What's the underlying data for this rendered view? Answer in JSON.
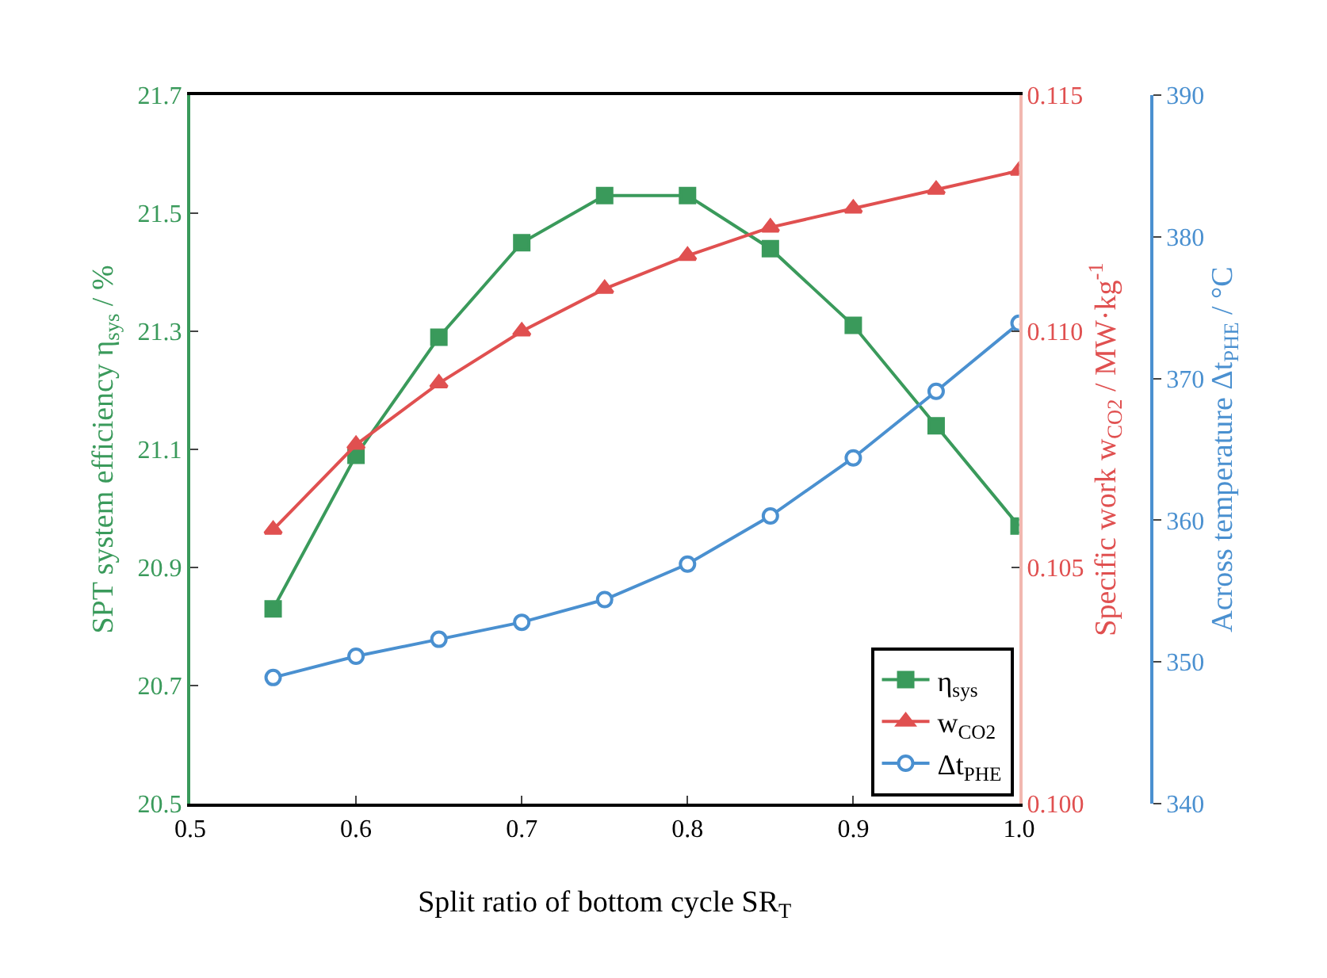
{
  "chart_data": {
    "type": "line",
    "xlabel": "Split ratio of bottom cycle SR$_{T}$",
    "ylabel": "SPT system efficiency η$_{sys}$ / %",
    "y2label": "Specific work w$_{CO2}$ / MW·kg$^{-1}$",
    "y3label": "Across temperature Δt$_{PHE}$ / °C",
    "x": [
      0.55,
      0.6,
      0.65,
      0.7,
      0.75,
      0.8,
      0.85,
      0.9,
      0.95,
      1.0
    ],
    "series": [
      {
        "name": "η$_{sys}$",
        "color": "#3a9a5b",
        "marker": "square",
        "values": [
          20.83,
          21.09,
          21.29,
          21.45,
          21.53,
          21.53,
          21.44,
          21.31,
          21.14,
          20.97
        ]
      },
      {
        "name": "w$_{CO2}$",
        "color": "#e05050",
        "marker": "triangle",
        "axis": "y2",
        "values": [
          0.1058,
          0.1076,
          0.1089,
          0.11,
          0.1109,
          0.1116,
          0.1122,
          0.1126,
          0.113,
          0.1134
        ]
      },
      {
        "name": "Δt$_{PHE}$",
        "color": "#4a90d0",
        "marker": "circle",
        "axis": "y3",
        "values": [
          348.9,
          350.4,
          351.6,
          352.8,
          354.4,
          356.9,
          360.3,
          364.4,
          369.1,
          373.9
        ]
      }
    ],
    "xlim": [
      0.5,
      1.0
    ],
    "xticks": [
      0.5,
      0.6,
      0.7,
      0.8,
      0.9,
      {
        "value": 1.0,
        "label": "1.0"
      }
    ],
    "ylim": [
      20.5,
      21.7
    ],
    "yticks": [
      20.5,
      20.7,
      20.9,
      21.1,
      21.3,
      21.5,
      21.7
    ],
    "y2lim": [
      0.1,
      0.115
    ],
    "y2ticks": [
      {
        "value": 0.1,
        "label": "0.100"
      },
      {
        "value": 0.105,
        "label": "0.105"
      },
      {
        "value": 0.11,
        "label": "0.110"
      },
      {
        "value": 0.115,
        "label": "0.115"
      }
    ],
    "y3lim": [
      340,
      390
    ],
    "y3ticks": [
      340,
      350,
      360,
      370,
      380,
      390
    ],
    "legend": "bottom right",
    "grid": false
  }
}
